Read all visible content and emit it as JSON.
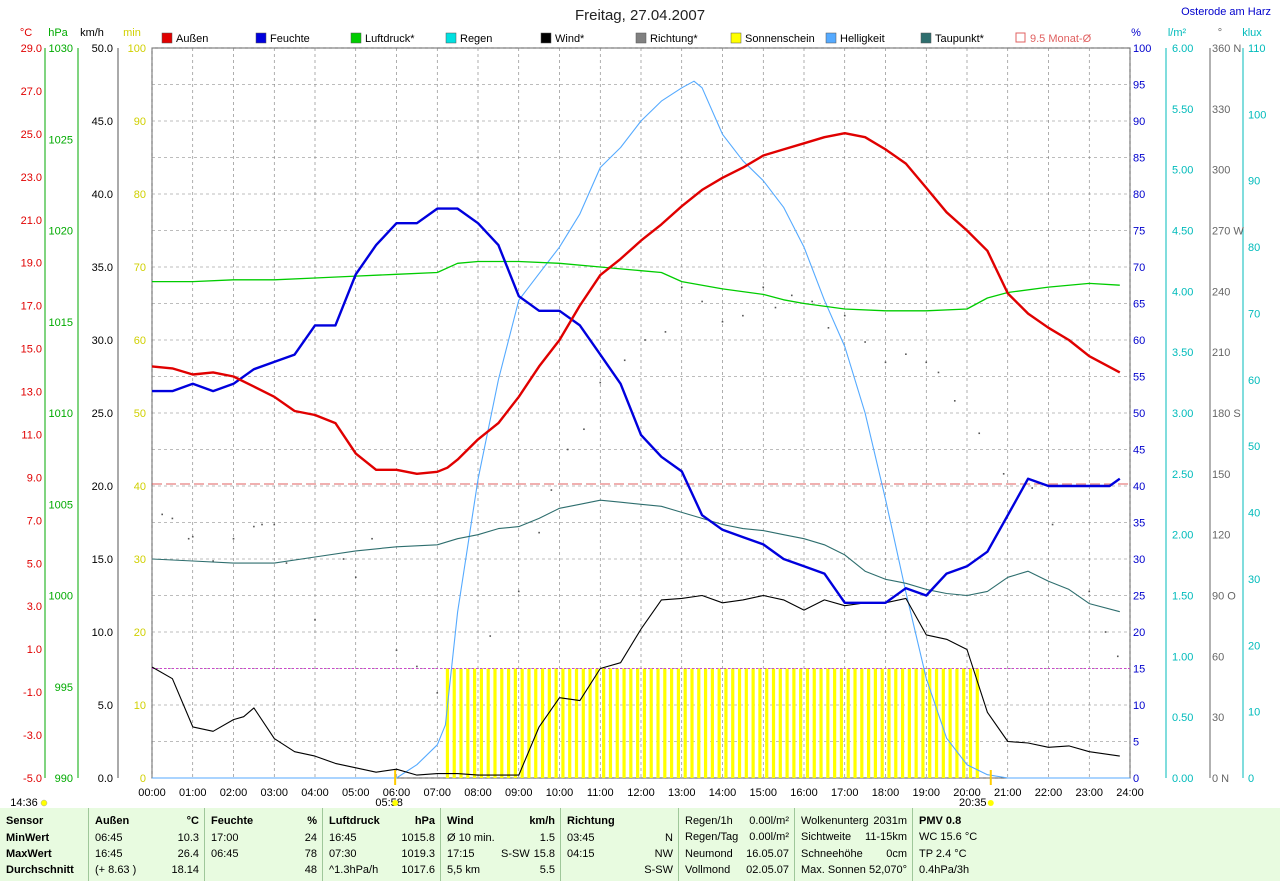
{
  "title": "Freitag, 27.04.2007",
  "location": "Osterode am Harz",
  "colors": {
    "aussen": "#e00000",
    "feuchte": "#0000dd",
    "luftdruck": "#00cc00",
    "regen": "#00e0e0",
    "wind": "#000000",
    "richtung": "#808080",
    "sonnenschein": "#ffff00",
    "helligkeit": "#55aaff",
    "taupunkt": "#2e6e6e",
    "monat": "#e06060",
    "grid": "#7a7a7a"
  },
  "legend": [
    {
      "label": "Außen",
      "color": "#e00000"
    },
    {
      "label": "Feuchte",
      "color": "#0000dd"
    },
    {
      "label": "Luftdruck*",
      "color": "#00cc00"
    },
    {
      "label": "Regen",
      "color": "#00e0e0"
    },
    {
      "label": "Wind*",
      "color": "#000000"
    },
    {
      "label": "Richtung*",
      "color": "#808080"
    },
    {
      "label": "Sonnenschein",
      "color": "#ffff00"
    },
    {
      "label": "Helligkeit",
      "color": "#55aaff"
    },
    {
      "label": "Taupunkt*",
      "color": "#2e6e6e"
    },
    {
      "label": "9.5 Monat-Ø",
      "color": "#e06060",
      "outline": true
    }
  ],
  "axis_units": {
    "temp": "°C",
    "pressure": "hPa",
    "wind": "km/h",
    "sun": "min",
    "humidity": "%",
    "rain": "l/m²",
    "direction": "°",
    "lux": "klux"
  },
  "time_labels": [
    "00:00",
    "01:00",
    "02:00",
    "03:00",
    "04:00",
    "05:00",
    "06:00",
    "07:00",
    "08:00",
    "09:00",
    "10:00",
    "11:00",
    "12:00",
    "13:00",
    "14:00",
    "15:00",
    "16:00",
    "17:00",
    "18:00",
    "19:00",
    "20:00",
    "21:00",
    "22:00",
    "23:00",
    "24:00"
  ],
  "markers": {
    "current": "14:36",
    "sunrise": "05:58",
    "sunset": "20:35"
  },
  "chart_data": {
    "type": "line",
    "x_unit": "hour of day",
    "xlim": [
      0,
      24
    ],
    "axes": {
      "temp": {
        "lim": [
          -5,
          31
        ],
        "ticks": [
          "29.0",
          "27.0",
          "25.0",
          "23.0",
          "21.0",
          "19.0",
          "17.0",
          "15.0",
          "13.0",
          "11.0",
          "9.0",
          "7.0",
          "5.0",
          "3.0",
          "1.0",
          "-1.0",
          "-3.0",
          "-5.0"
        ]
      },
      "pressure": {
        "lim": [
          990,
          1030
        ],
        "ticks": [
          "1030",
          "1025",
          "1020",
          "1015",
          "1010",
          "1005",
          "1000",
          "995",
          "990"
        ]
      },
      "wind": {
        "lim": [
          0,
          50
        ],
        "ticks": [
          "50.0",
          "45.0",
          "40.0",
          "35.0",
          "30.0",
          "25.0",
          "20.0",
          "15.0",
          "10.0",
          "5.0",
          "0.0"
        ]
      },
      "sun": {
        "lim": [
          0,
          100
        ],
        "ticks": [
          "100",
          "90",
          "80",
          "70",
          "60",
          "50",
          "40",
          "30",
          "20",
          "10",
          "0"
        ]
      },
      "humidity": {
        "lim": [
          0,
          100
        ],
        "ticks": [
          "100",
          "95",
          "90",
          "85",
          "80",
          "75",
          "70",
          "65",
          "60",
          "55",
          "50",
          "45",
          "40",
          "35",
          "30",
          "25",
          "20",
          "15",
          "10",
          "5",
          "0"
        ]
      },
      "rain": {
        "lim": [
          0,
          6
        ],
        "ticks": [
          "6.00",
          "5.50",
          "5.00",
          "4.50",
          "4.00",
          "3.50",
          "3.00",
          "2.50",
          "2.00",
          "1.50",
          "1.00",
          "0.50",
          "0.00"
        ]
      },
      "direction": {
        "lim": [
          0,
          360
        ],
        "ticks": [
          "360 N",
          "330",
          "300",
          "270 W",
          "240",
          "210",
          "180 S",
          "150",
          "120",
          "90 O",
          "60",
          "30",
          "0 N"
        ]
      },
      "lux": {
        "lim": [
          0,
          110
        ],
        "ticks": [
          "110",
          "100",
          "90",
          "80",
          "70",
          "60",
          "50",
          "40",
          "30",
          "20",
          "10",
          "0"
        ]
      }
    },
    "monat_avg": 9.5,
    "ref_line_wind": 7.5,
    "series": [
      {
        "name": "Außen",
        "axis": "temp",
        "width": 2.4,
        "x": [
          0,
          0.5,
          1,
          1.5,
          2,
          2.5,
          3,
          3.5,
          4,
          4.5,
          5,
          5.5,
          6,
          6.5,
          7,
          7.25,
          7.5,
          8,
          8.5,
          9,
          9.5,
          10,
          10.5,
          11,
          11.5,
          12,
          12.5,
          13,
          13.5,
          14,
          14.5,
          15,
          15.5,
          16,
          16.5,
          17,
          17.5,
          18,
          18.5,
          19,
          19.5,
          20,
          20.5,
          21,
          21.5,
          22,
          22.5,
          23,
          23.75
        ],
        "values": [
          15.3,
          15.2,
          14.9,
          15.0,
          14.8,
          14.3,
          13.8,
          13.1,
          12.9,
          12.5,
          11.0,
          10.2,
          10.2,
          10.0,
          10.1,
          10.3,
          10.7,
          11.7,
          12.5,
          13.8,
          15.3,
          16.6,
          18.3,
          19.8,
          20.6,
          21.5,
          22.3,
          23.2,
          24.0,
          24.6,
          25.1,
          25.7,
          26.0,
          26.3,
          26.6,
          26.8,
          26.6,
          26.0,
          25.3,
          24.1,
          22.9,
          22.0,
          21.0,
          18.9,
          17.9,
          17.2,
          16.6,
          15.8,
          15.0
        ]
      },
      {
        "name": "Feuchte",
        "axis": "humidity",
        "width": 2.4,
        "x": [
          0,
          0.5,
          1,
          1.5,
          2,
          2.5,
          3,
          3.5,
          4,
          4.5,
          5,
          5.5,
          6,
          6.5,
          7,
          7.5,
          8,
          8.5,
          9,
          9.5,
          10,
          10.5,
          11,
          11.5,
          12,
          12.5,
          13,
          13.5,
          14,
          14.5,
          15,
          15.5,
          16,
          16.5,
          17,
          17.5,
          18,
          18.5,
          19,
          19.5,
          20,
          20.5,
          21,
          21.5,
          22,
          22.5,
          23,
          23.5,
          23.75
        ],
        "values": [
          53,
          53,
          54,
          53,
          54,
          56,
          57,
          58,
          62,
          62,
          69,
          73,
          76,
          76,
          78,
          78,
          76,
          73,
          66,
          64,
          64,
          62,
          58,
          54,
          47,
          44,
          42,
          36,
          34,
          33,
          32,
          30,
          29,
          28,
          24,
          24,
          24,
          26,
          25,
          28,
          29,
          31,
          36,
          41,
          40,
          40,
          40,
          40,
          41
        ]
      },
      {
        "name": "Luftdruck",
        "axis": "pressure",
        "width": 1.3,
        "x": [
          0,
          1,
          2,
          3,
          4,
          5,
          6,
          7,
          7.5,
          8,
          8.5,
          9,
          10,
          11,
          12,
          12.5,
          13,
          14,
          15,
          15.5,
          16,
          17,
          18,
          19,
          20,
          20.5,
          21,
          22,
          23,
          23.75
        ],
        "values": [
          1017.2,
          1017.2,
          1017.3,
          1017.3,
          1017.4,
          1017.5,
          1017.6,
          1017.7,
          1018.2,
          1018.3,
          1018.3,
          1018.3,
          1018.2,
          1018.0,
          1017.8,
          1017.7,
          1017.2,
          1016.8,
          1016.5,
          1016.2,
          1016.0,
          1015.7,
          1015.6,
          1015.6,
          1015.7,
          1016.3,
          1016.6,
          1016.9,
          1017.1,
          1017.0
        ]
      },
      {
        "name": "Wind",
        "axis": "wind",
        "width": 1.1,
        "x": [
          0,
          0.5,
          1,
          1.5,
          2,
          2.25,
          2.5,
          3,
          3.5,
          4,
          4.5,
          5,
          5.5,
          6,
          6.5,
          7,
          7.5,
          8,
          8.5,
          9,
          9.5,
          10,
          10.5,
          11,
          11.5,
          12,
          12.5,
          13,
          13.5,
          14,
          14.5,
          15,
          15.5,
          16,
          16.5,
          17,
          17.5,
          18,
          18.5,
          19,
          19.5,
          20,
          20.5,
          21,
          21.5,
          22,
          22.5,
          23,
          23.75
        ],
        "values": [
          7.6,
          6.8,
          3.5,
          3.2,
          4.0,
          4.2,
          4.8,
          2.7,
          1.8,
          1.5,
          1.0,
          0.7,
          0.4,
          0.6,
          0.2,
          0.3,
          0.3,
          0.2,
          0.2,
          0.2,
          3.5,
          5.5,
          5.3,
          7.5,
          7.9,
          10.2,
          12.2,
          12.3,
          12.5,
          12.0,
          12.2,
          12.5,
          12.2,
          11.5,
          12.2,
          11.8,
          12.0,
          12.0,
          12.3,
          9.8,
          9.5,
          8.8,
          4.5,
          2.5,
          2.4,
          2.1,
          2.2,
          1.8,
          1.5
        ]
      },
      {
        "name": "Helligkeit",
        "axis": "lux",
        "width": 1.1,
        "x": [
          0,
          6.0,
          6.5,
          7.0,
          7.2,
          7.5,
          8.0,
          8.5,
          9.0,
          9.5,
          10.0,
          10.5,
          11.0,
          11.5,
          12.0,
          12.5,
          13.0,
          13.3,
          13.5,
          14.0,
          14.5,
          15.0,
          15.5,
          16.0,
          16.5,
          17.0,
          17.5,
          18.0,
          18.5,
          19.0,
          19.5,
          20.0,
          20.5,
          21.0,
          24.0
        ],
        "values": [
          0,
          0,
          2,
          5,
          8,
          25,
          45,
          60,
          72,
          76,
          80,
          85,
          92,
          95,
          99,
          102,
          104,
          105,
          104,
          97,
          93,
          90,
          86,
          80,
          72,
          65,
          55,
          42,
          28,
          15,
          6,
          2,
          0.5,
          0,
          0
        ]
      },
      {
        "name": "Taupunkt",
        "axis": "temp",
        "width": 1.1,
        "x": [
          0,
          1,
          2,
          3,
          4,
          5,
          6,
          7,
          7.5,
          8,
          8.5,
          9,
          9.5,
          10,
          10.5,
          11,
          11.5,
          12,
          12.5,
          13,
          13.5,
          14,
          14.5,
          15,
          15.5,
          16,
          16.5,
          17,
          17.5,
          18,
          18.5,
          19,
          19.5,
          20,
          20.5,
          21,
          21.5,
          22,
          22.5,
          23,
          23.75
        ],
        "values": [
          5.8,
          5.7,
          5.6,
          5.6,
          5.9,
          6.2,
          6.4,
          6.5,
          6.8,
          7.0,
          7.3,
          7.4,
          7.8,
          8.3,
          8.5,
          8.7,
          8.6,
          8.5,
          8.4,
          8.1,
          7.8,
          7.5,
          7.3,
          7.2,
          7.0,
          6.8,
          6.5,
          6.0,
          5.2,
          4.8,
          4.6,
          4.3,
          4.1,
          4.0,
          4.2,
          4.9,
          5.2,
          4.7,
          4.3,
          3.6,
          3.2
        ]
      }
    ],
    "sunshine_minutes_per_10": {
      "start": 7.25,
      "end": 20.4,
      "step": 0.1667,
      "value": 15
    },
    "richtung_scatter": {
      "axis": "direction",
      "points": [
        [
          0.25,
          130
        ],
        [
          0.5,
          128
        ],
        [
          0.9,
          118
        ],
        [
          1.0,
          119
        ],
        [
          1.5,
          107
        ],
        [
          2.0,
          118
        ],
        [
          2.5,
          124
        ],
        [
          2.7,
          125
        ],
        [
          3.0,
          125
        ],
        [
          3.3,
          106
        ],
        [
          4.0,
          78
        ],
        [
          4.7,
          108
        ],
        [
          5.0,
          99
        ],
        [
          5.4,
          118
        ],
        [
          6.0,
          63
        ],
        [
          6.5,
          55
        ],
        [
          7.0,
          42
        ],
        [
          8.3,
          70
        ],
        [
          9.0,
          92
        ],
        [
          9.5,
          121
        ],
        [
          9.8,
          142
        ],
        [
          10.2,
          162
        ],
        [
          10.6,
          172
        ],
        [
          11.0,
          195
        ],
        [
          11.3,
          200
        ],
        [
          11.6,
          206
        ],
        [
          12.1,
          216
        ],
        [
          12.6,
          220
        ],
        [
          13.0,
          242
        ],
        [
          13.5,
          235
        ],
        [
          14.0,
          225
        ],
        [
          14.5,
          228
        ],
        [
          15.0,
          242
        ],
        [
          15.3,
          232
        ],
        [
          15.7,
          238
        ],
        [
          16.2,
          235
        ],
        [
          16.6,
          222
        ],
        [
          17.0,
          228
        ],
        [
          17.5,
          215
        ],
        [
          18.0,
          205
        ],
        [
          18.5,
          209
        ],
        [
          19.0,
          205
        ],
        [
          19.3,
          200
        ],
        [
          19.7,
          186
        ],
        [
          20.3,
          170
        ],
        [
          20.9,
          150
        ],
        [
          21.6,
          143
        ],
        [
          22.1,
          125
        ],
        [
          23.0,
          92
        ],
        [
          23.4,
          72
        ],
        [
          23.7,
          60
        ]
      ]
    }
  },
  "stats": {
    "sensor": {
      "header": "Sensor",
      "rows": [
        "MinWert",
        "MaxWert",
        "Durchschnitt"
      ]
    },
    "aussen": {
      "header": "Außen",
      "unit": "°C",
      "rows": [
        [
          "06:45",
          "10.3"
        ],
        [
          "16:45",
          "26.4"
        ],
        [
          "(+ 8.63 )",
          "18.14"
        ]
      ]
    },
    "feuchte": {
      "header": "Feuchte",
      "unit": "%",
      "rows": [
        [
          "17:00",
          "24"
        ],
        [
          "06:45",
          "78"
        ],
        [
          "",
          "48"
        ]
      ]
    },
    "luftdruck": {
      "header": "Luftdruck",
      "unit": "hPa",
      "rows": [
        [
          "16:45",
          "1015.8"
        ],
        [
          "07:30",
          "1019.3"
        ],
        [
          "^1.3hPa/h",
          "1017.6"
        ]
      ]
    },
    "wind": {
      "header": "Wind",
      "unit": "km/h",
      "rows": [
        [
          "Ø 10 min.",
          "",
          "1.5"
        ],
        [
          "17:15",
          "S-SW",
          "15.8"
        ],
        [
          "5,5 km",
          "",
          "5.5"
        ]
      ]
    },
    "richtung": {
      "header": "Richtung",
      "rows": [
        [
          "03:45",
          "N"
        ],
        [
          "04:15",
          "NW"
        ],
        [
          "",
          "S-SW"
        ]
      ]
    },
    "regen": {
      "rows": [
        [
          "Regen/1h",
          "0.00l/m²"
        ],
        [
          "Regen/Tag",
          "0.00l/m²"
        ],
        [
          "Neumond",
          "16.05.07"
        ],
        [
          "Vollmond",
          "02.05.07"
        ]
      ]
    },
    "wolken": {
      "rows": [
        [
          "Wolkenunterg",
          "2031m"
        ],
        [
          "Sichtweite",
          "11-15km"
        ],
        [
          "Schneehöhe",
          "0cm"
        ],
        [
          "Max. Sonnen",
          "52,070°"
        ]
      ]
    },
    "pmv": {
      "rows": [
        "PMV 0.8",
        "WC 15.6 °C",
        "TP 2.4 °C",
        "0.4hPa/3h"
      ]
    }
  }
}
